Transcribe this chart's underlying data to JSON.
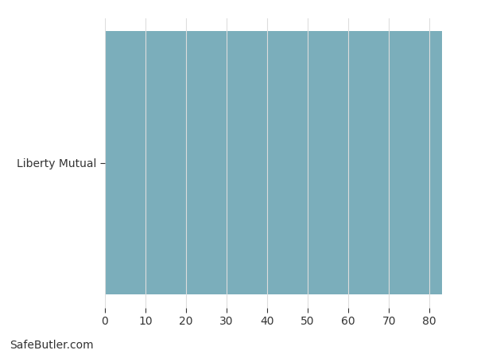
{
  "categories": [
    "Liberty Mutual"
  ],
  "values": [
    83
  ],
  "bar_color": "#7BAEBB",
  "xlim": [
    0,
    87
  ],
  "xticks": [
    0,
    10,
    20,
    30,
    40,
    50,
    60,
    70,
    80
  ],
  "background_color": "#ffffff",
  "grid_color": "#dddddd",
  "bar_height": 0.97,
  "tick_label_fontsize": 10,
  "ytick_fontsize": 10,
  "watermark": "SafeButler.com",
  "watermark_fontsize": 10
}
